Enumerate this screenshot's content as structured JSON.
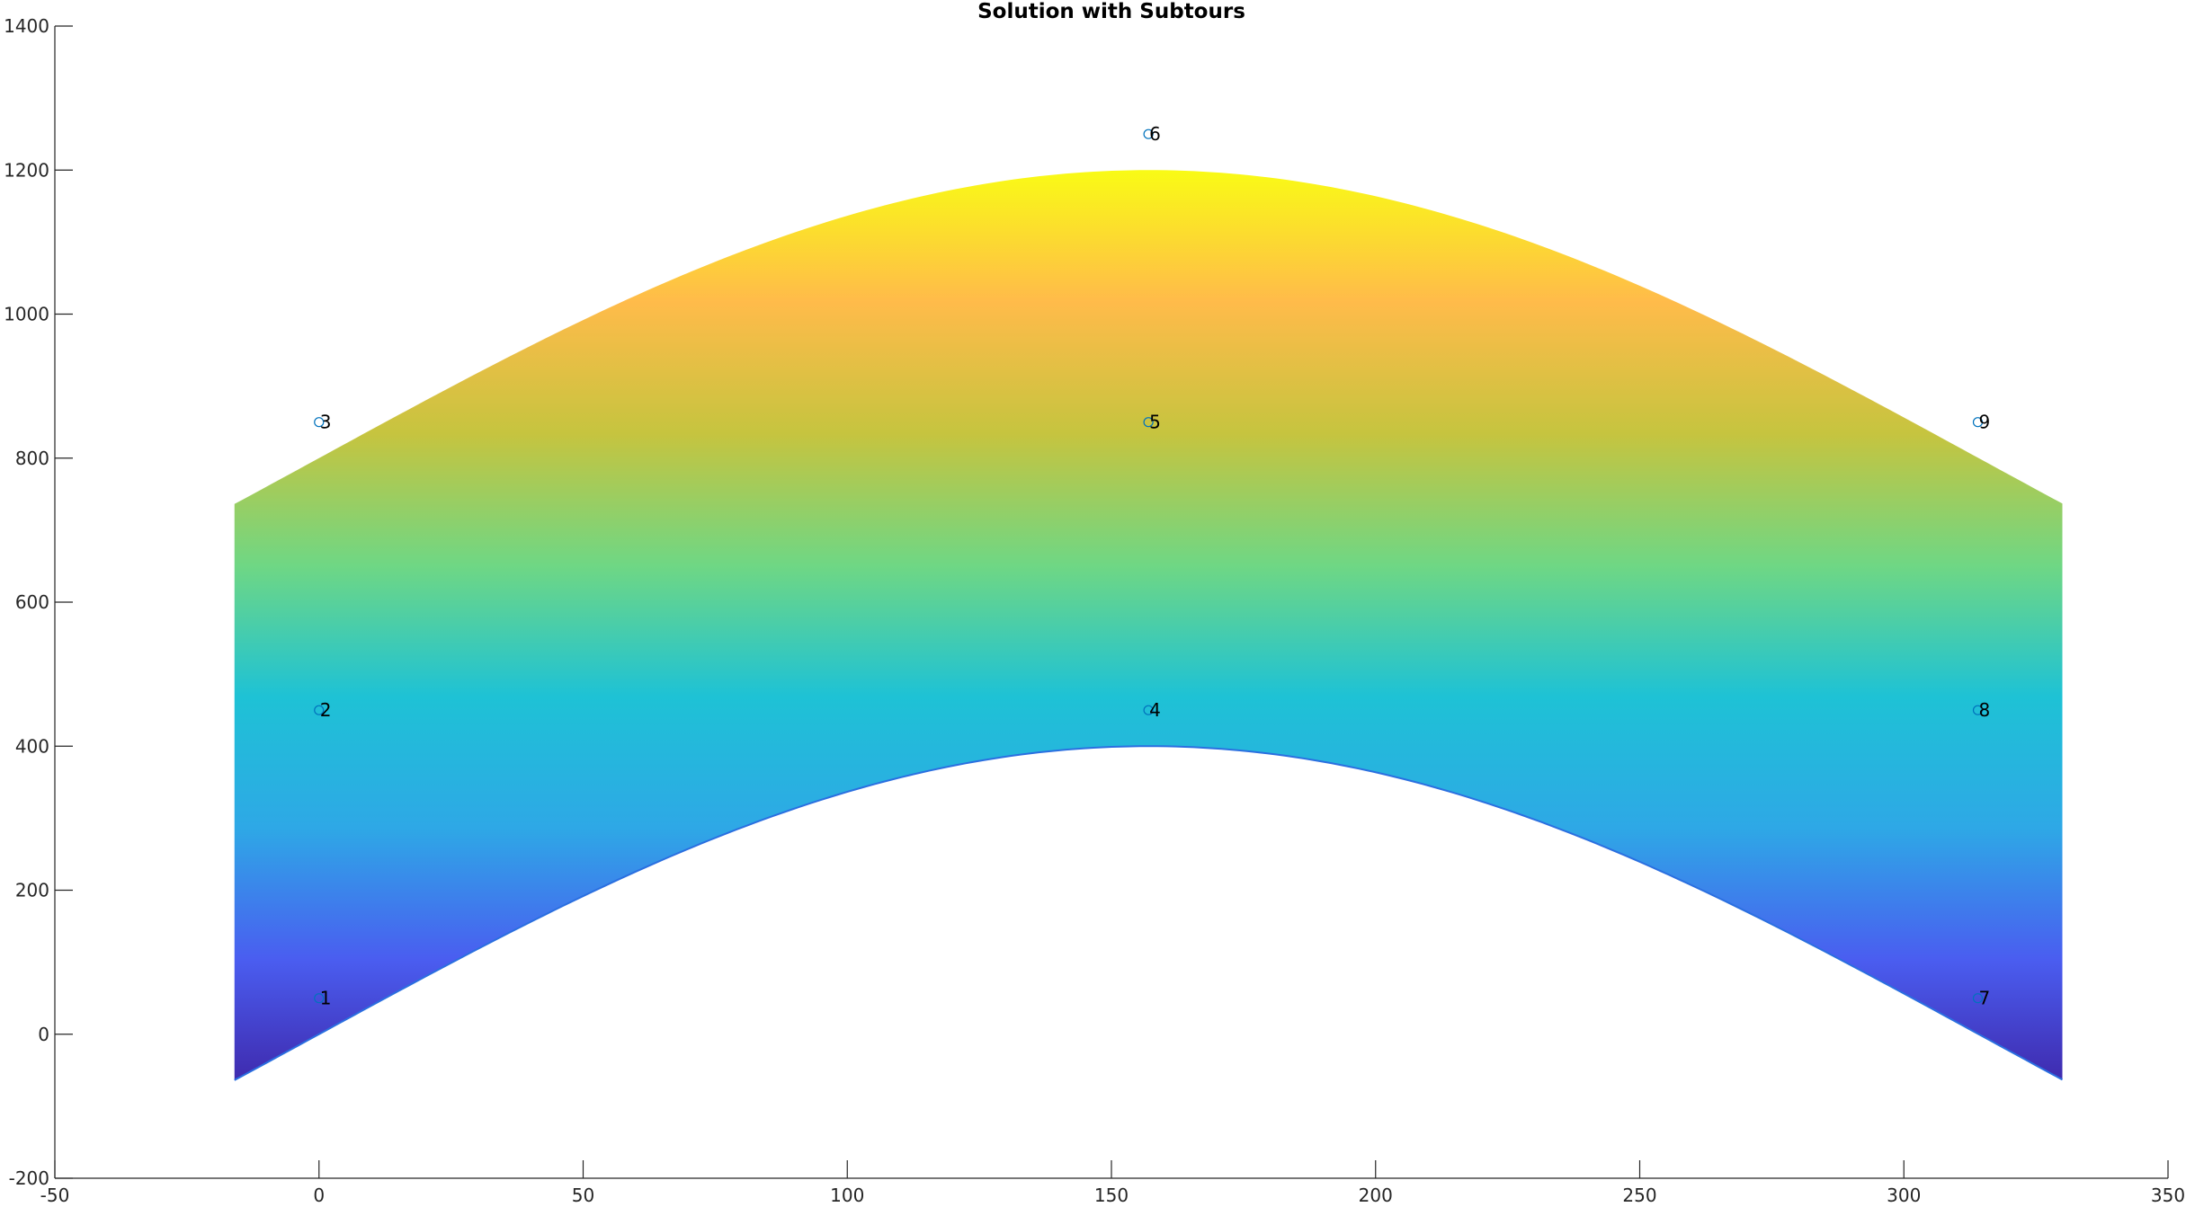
{
  "chart_data": {
    "type": "scatter",
    "title": "Solution with Subtours",
    "xlabel": "",
    "ylabel": "",
    "xlim": [
      -50,
      350
    ],
    "ylim": [
      -200,
      1400
    ],
    "xticks": [
      -50,
      0,
      50,
      100,
      150,
      200,
      250,
      300,
      350
    ],
    "yticks": [
      -200,
      0,
      200,
      400,
      600,
      800,
      1000,
      1200,
      1400
    ],
    "grid": false,
    "points": [
      {
        "label": "1",
        "x": 0,
        "y": 50
      },
      {
        "label": "2",
        "x": 0,
        "y": 450
      },
      {
        "label": "3",
        "x": 0,
        "y": 850
      },
      {
        "label": "4",
        "x": 157,
        "y": 450
      },
      {
        "label": "5",
        "x": 157,
        "y": 850
      },
      {
        "label": "6",
        "x": 157,
        "y": 1250
      },
      {
        "label": "7",
        "x": 314,
        "y": 50
      },
      {
        "label": "8",
        "x": 314,
        "y": 450
      },
      {
        "label": "9",
        "x": 314,
        "y": 850
      }
    ],
    "region": {
      "x_range": [
        -16,
        330
      ],
      "lower_curve": "400*sin(x/100)",
      "upper_curve": "800 + 400*sin(x/100)",
      "colormap": [
        "#3e26a8",
        "#4a5df0",
        "#2ea8e6",
        "#1ec2d5",
        "#6fd784",
        "#c6c43f",
        "#ffbb4a",
        "#f9fb15"
      ]
    },
    "marker_color": "#0072BD"
  }
}
